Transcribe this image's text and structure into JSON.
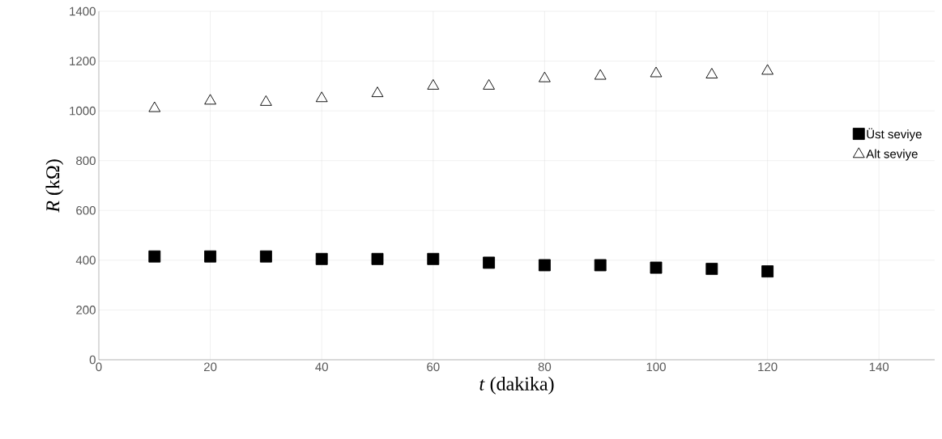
{
  "chart_data": {
    "type": "scatter",
    "xlabel": "*t* (dakika)",
    "ylabel": "*R*  (kΩ)",
    "x": [
      10,
      20,
      30,
      40,
      50,
      60,
      70,
      80,
      90,
      100,
      110,
      120
    ],
    "series": [
      {
        "name": "Üst seviye",
        "color": "#000000",
        "marker": "square",
        "values": [
          415,
          415,
          415,
          405,
          405,
          405,
          390,
          380,
          380,
          370,
          365,
          355
        ]
      },
      {
        "name": "Alt seviye",
        "color": "#000000",
        "marker": "triangle",
        "values": [
          1010,
          1040,
          1035,
          1050,
          1070,
          1100,
          1100,
          1130,
          1140,
          1150,
          1145,
          1160
        ]
      }
    ],
    "xlim": [
      0,
      150
    ],
    "xticks": [
      0,
      20,
      40,
      60,
      80,
      100,
      120,
      140
    ],
    "ylim": [
      0,
      1400
    ],
    "yticks": [
      0,
      200,
      400,
      600,
      800,
      1000,
      1200,
      1400
    ],
    "grid": true,
    "legend": "right"
  }
}
